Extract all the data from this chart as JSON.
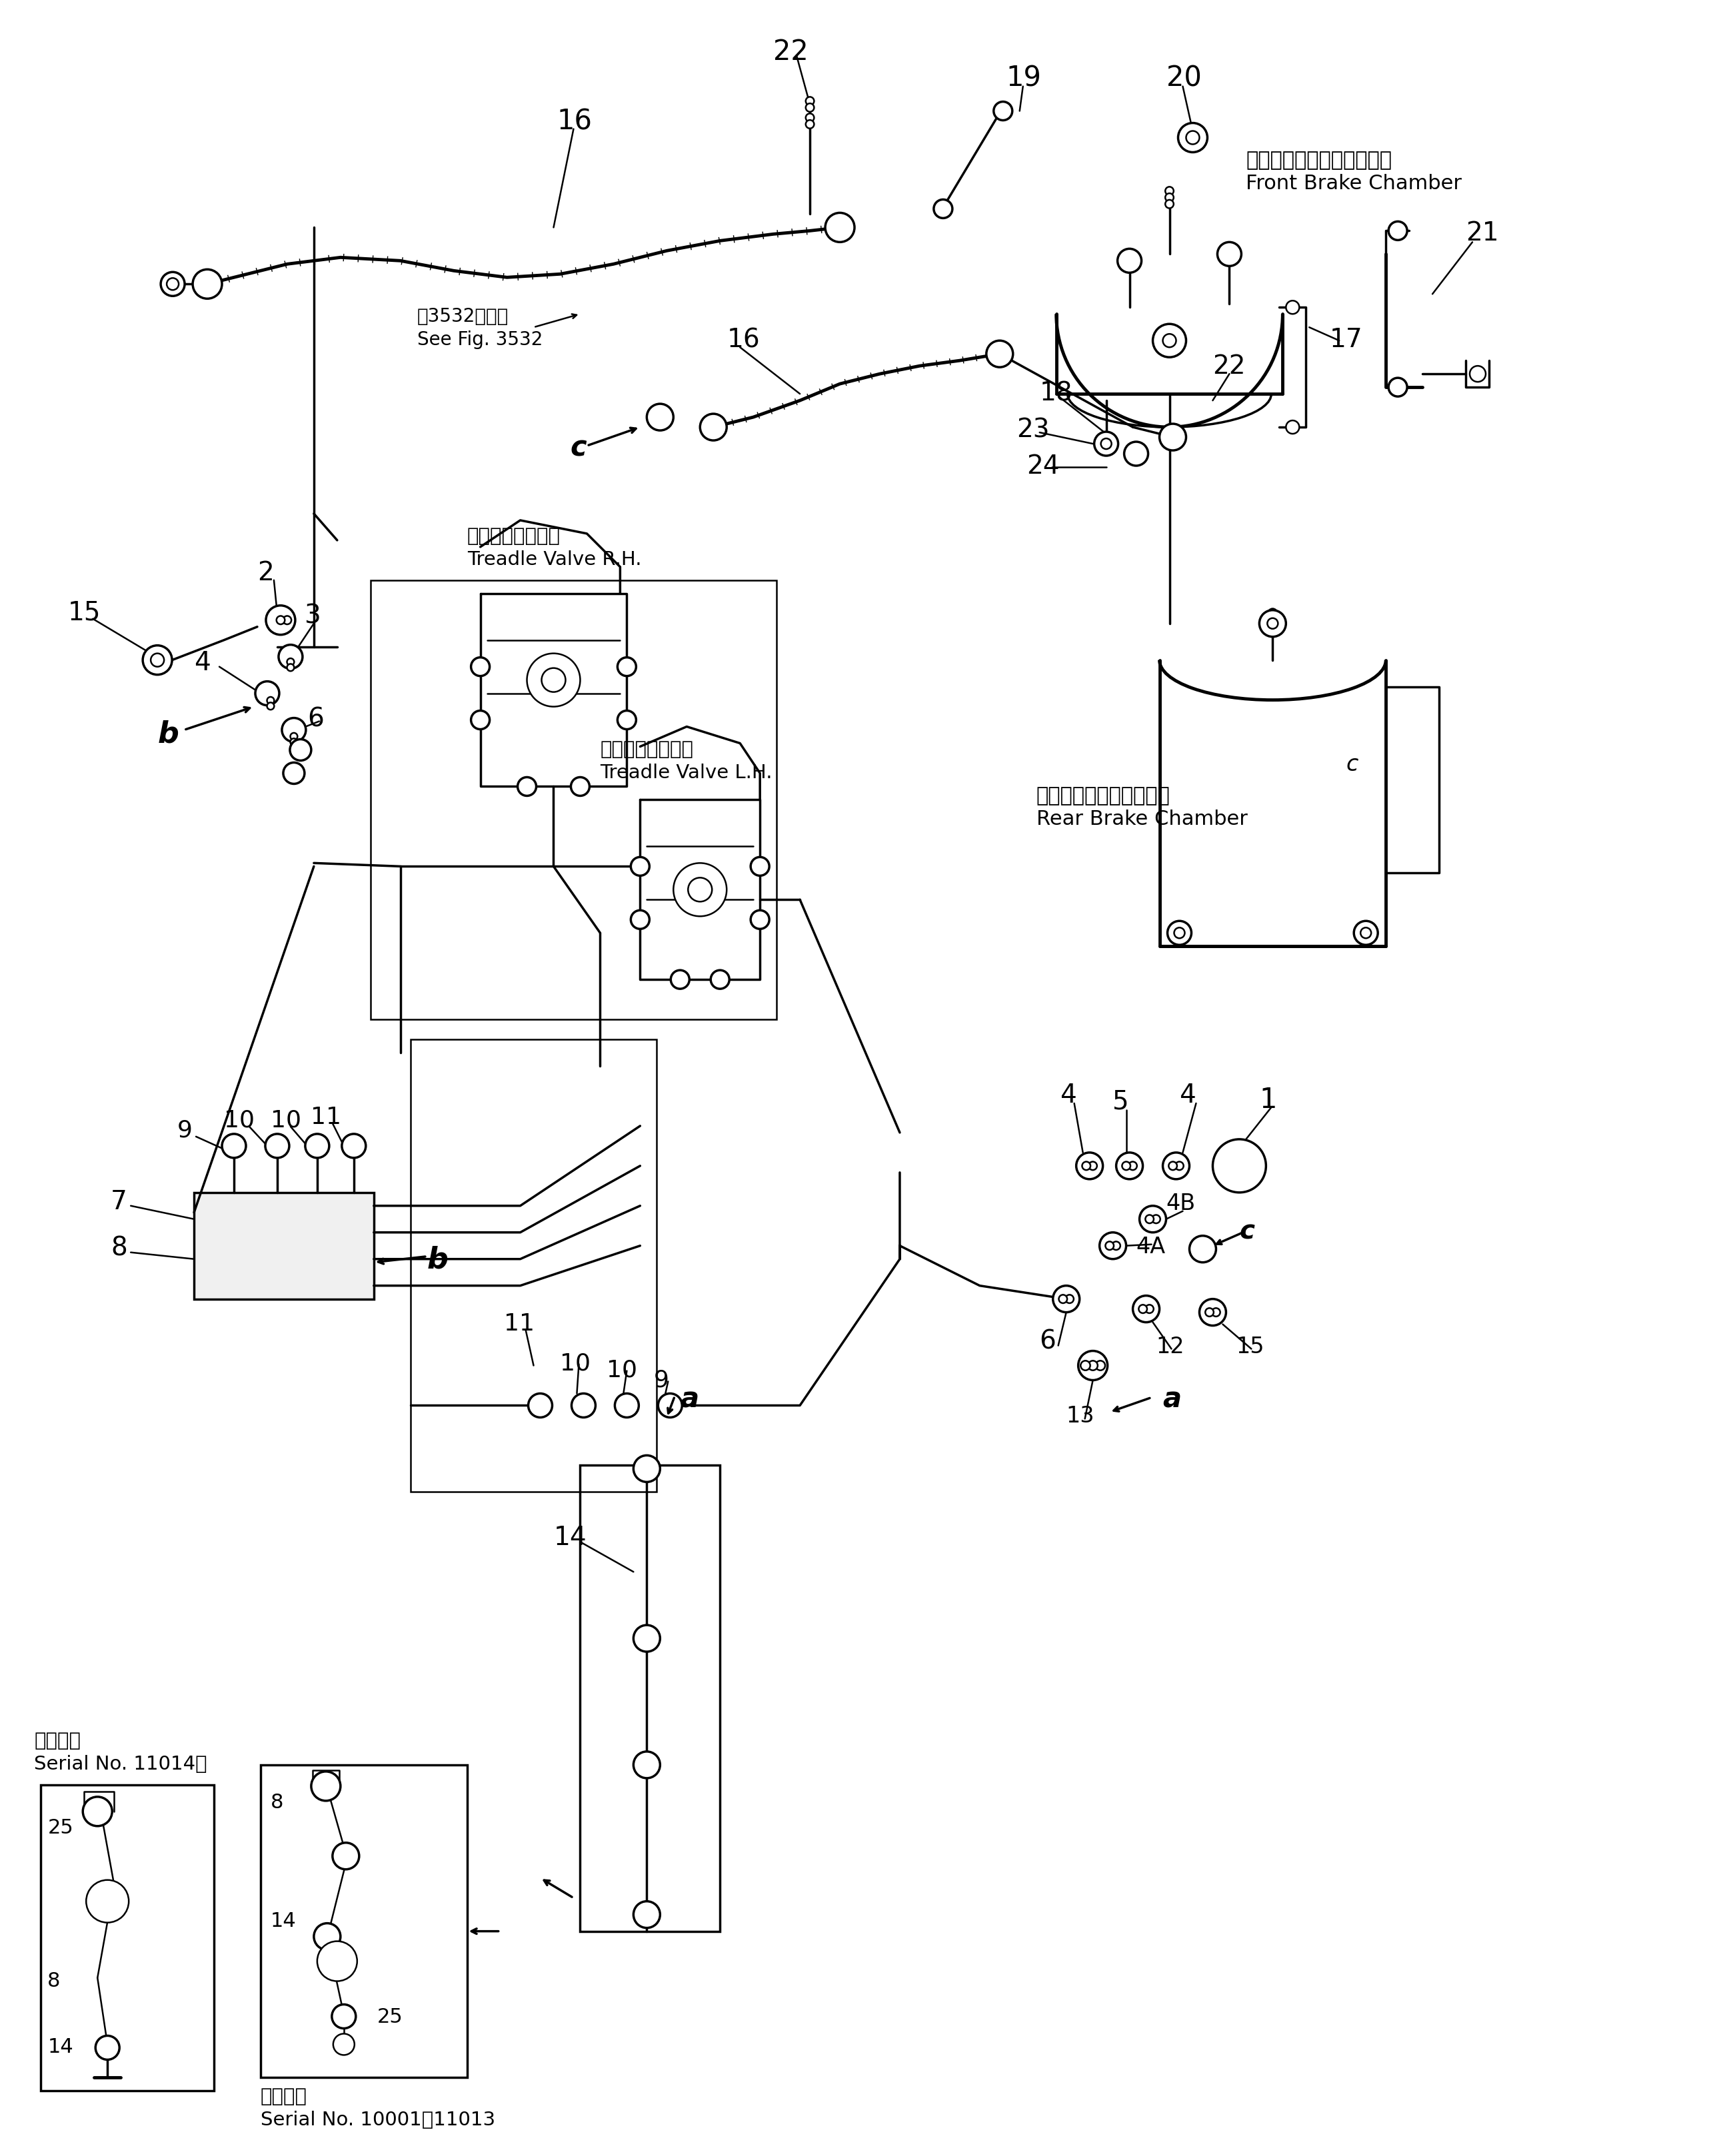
{
  "bg_color": "#ffffff",
  "labels": {
    "front_brake_jp": "フロントブレーキチャンバ",
    "front_brake_en": "Front Brake Chamber",
    "rear_brake_jp": "リヤーブレーキチャンバ",
    "rear_brake_en": "Rear Brake Chamber",
    "treadle_rh_jp": "トレドルバルブ右",
    "treadle_rh_en": "Treadle Valve R.H.",
    "treadle_lh_jp": "トレドルバルブ左",
    "treadle_lh_en": "Treadle Valve L.H.",
    "see_fig_jp": "第3532図参照",
    "see_fig_en": "See Fig. 3532",
    "serial_11014_jp": "適用号機",
    "serial_11014_en": "Serial No. 11014～",
    "serial_10001_jp": "適用号機",
    "serial_10001_en": "Serial No. 10001～11013"
  },
  "fig_width": 25.85,
  "fig_height": 32.36
}
